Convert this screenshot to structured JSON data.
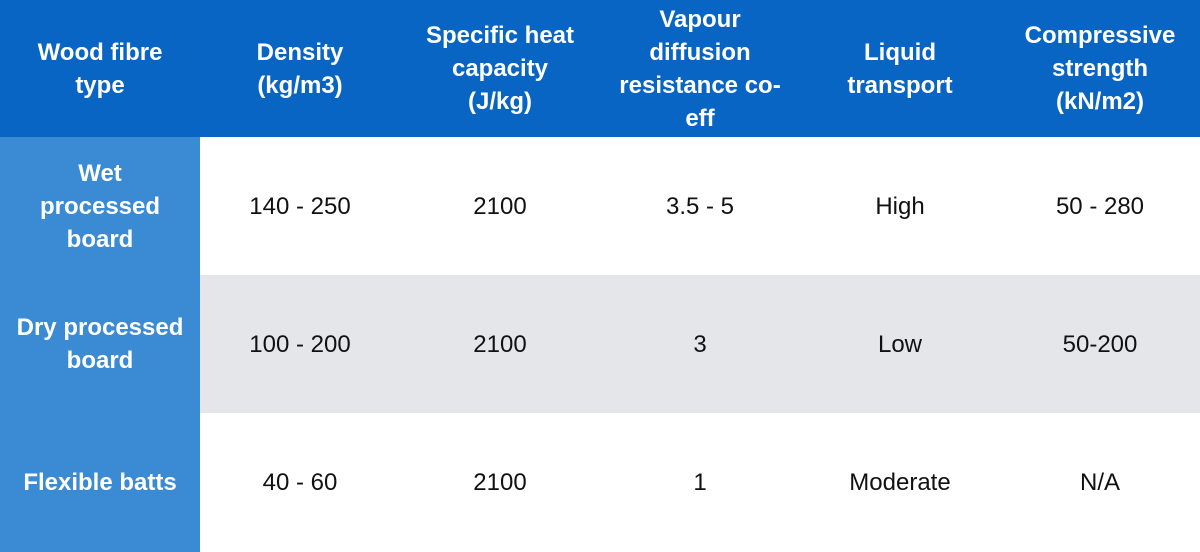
{
  "table": {
    "columns": [
      "Wood fibre\ntype",
      "Density\n(kg/m3)",
      "Specific heat\ncapacity\n(J/kg)",
      "Vapour\ndiffusion\nresistance co-\neff",
      "Liquid\ntransport",
      "Compressive\nstrength\n(kN/m2)"
    ],
    "rows": [
      [
        "Wet\nprocessed\nboard",
        "140 - 250",
        "2100",
        "3.5 - 5",
        "High",
        "50 - 280"
      ],
      [
        "Dry processed\nboard",
        "100 - 200",
        "2100",
        "3",
        "Low",
        "50-200"
      ],
      [
        "Flexible batts",
        "40 - 60",
        "2100",
        "1",
        "Moderate",
        "N/A"
      ]
    ]
  }
}
